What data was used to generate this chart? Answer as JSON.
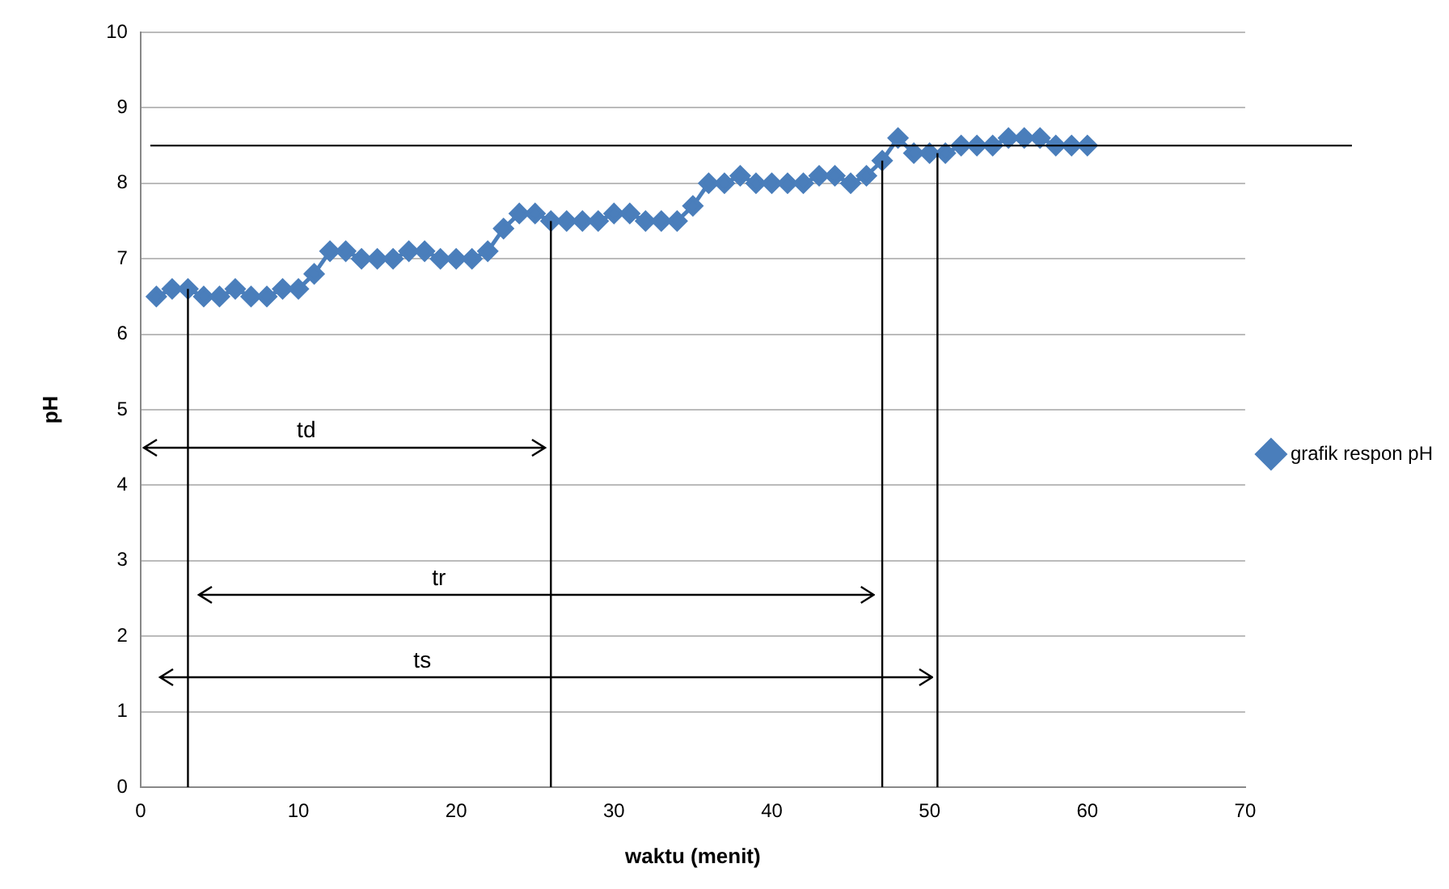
{
  "chart_data": {
    "type": "line",
    "xlabel": "waktu (menit)",
    "ylabel": "pH",
    "x": [
      1,
      2,
      3,
      4,
      5,
      6,
      7,
      8,
      9,
      10,
      11,
      12,
      13,
      14,
      15,
      16,
      17,
      18,
      19,
      20,
      21,
      22,
      23,
      24,
      25,
      26,
      27,
      28,
      29,
      30,
      31,
      32,
      33,
      34,
      35,
      36,
      37,
      38,
      39,
      40,
      41,
      42,
      43,
      44,
      45,
      46,
      47,
      48,
      49,
      50,
      51,
      52,
      53,
      54,
      55,
      56,
      57,
      58,
      59,
      60
    ],
    "series": [
      {
        "name": "grafik respon pH",
        "color": "#4a7ebb",
        "values": [
          6.5,
          6.6,
          6.6,
          6.5,
          6.5,
          6.6,
          6.5,
          6.5,
          6.6,
          6.6,
          6.8,
          7.1,
          7.1,
          7.0,
          7.0,
          7.0,
          7.1,
          7.1,
          7.0,
          7.0,
          7.0,
          7.1,
          7.4,
          7.6,
          7.6,
          7.5,
          7.5,
          7.5,
          7.5,
          7.6,
          7.6,
          7.5,
          7.5,
          7.5,
          7.7,
          8.0,
          8.0,
          8.1,
          8.0,
          8.0,
          8.0,
          8.0,
          8.1,
          8.1,
          8.0,
          8.1,
          8.3,
          8.6,
          8.4,
          8.4,
          8.4,
          8.5,
          8.5,
          8.5,
          8.6,
          8.6,
          8.6,
          8.5,
          8.5,
          8.5
        ]
      }
    ],
    "xlim": [
      0,
      70
    ],
    "xticks": [
      0,
      10,
      20,
      30,
      40,
      50,
      60,
      70
    ],
    "ylim": [
      0,
      10
    ],
    "yticks": [
      0,
      1,
      2,
      3,
      4,
      5,
      6,
      7,
      8,
      9,
      10
    ],
    "ref_lines": [
      {
        "axis": "y",
        "value": 8.5,
        "color": "#000000"
      },
      {
        "axis": "x",
        "value": 3,
        "color": "#000000"
      },
      {
        "axis": "x",
        "value": 26,
        "color": "#000000"
      },
      {
        "axis": "x",
        "value": 47,
        "color": "#000000"
      },
      {
        "axis": "x",
        "value": 50.5,
        "color": "#000000"
      }
    ],
    "annotations": [
      "td",
      "tr",
      "ts"
    ],
    "grid": "y",
    "legend": "right",
    "marker": "diamond",
    "line_style": "solid"
  }
}
